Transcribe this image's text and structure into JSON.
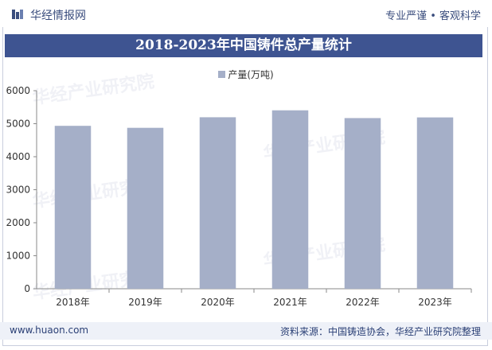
{
  "header": {
    "brand": "华经情报网",
    "slogan": "专业严谨 • 客观科学"
  },
  "chart_data": {
    "type": "bar",
    "title": "2018-2023年中国铸件总产量统计",
    "categories": [
      "2018年",
      "2019年",
      "2020年",
      "2021年",
      "2022年",
      "2023年"
    ],
    "series": [
      {
        "name": "产量(万吨)",
        "values": [
          4935,
          4875,
          5195,
          5405,
          5170,
          5190
        ]
      }
    ],
    "ylim": [
      0,
      6000
    ],
    "yticks": [
      0,
      1000,
      2000,
      3000,
      4000,
      5000,
      6000
    ],
    "legend_position": "top-center",
    "grid": false,
    "bar_color": "#a5afc8"
  },
  "footer": {
    "website": "www.huaon.com",
    "source": "资料来源：中国铸造协会，华经产业研究院整理"
  },
  "watermark": {
    "text_cn": "华经产业研究院",
    "text_url": "www.huaon.com"
  }
}
